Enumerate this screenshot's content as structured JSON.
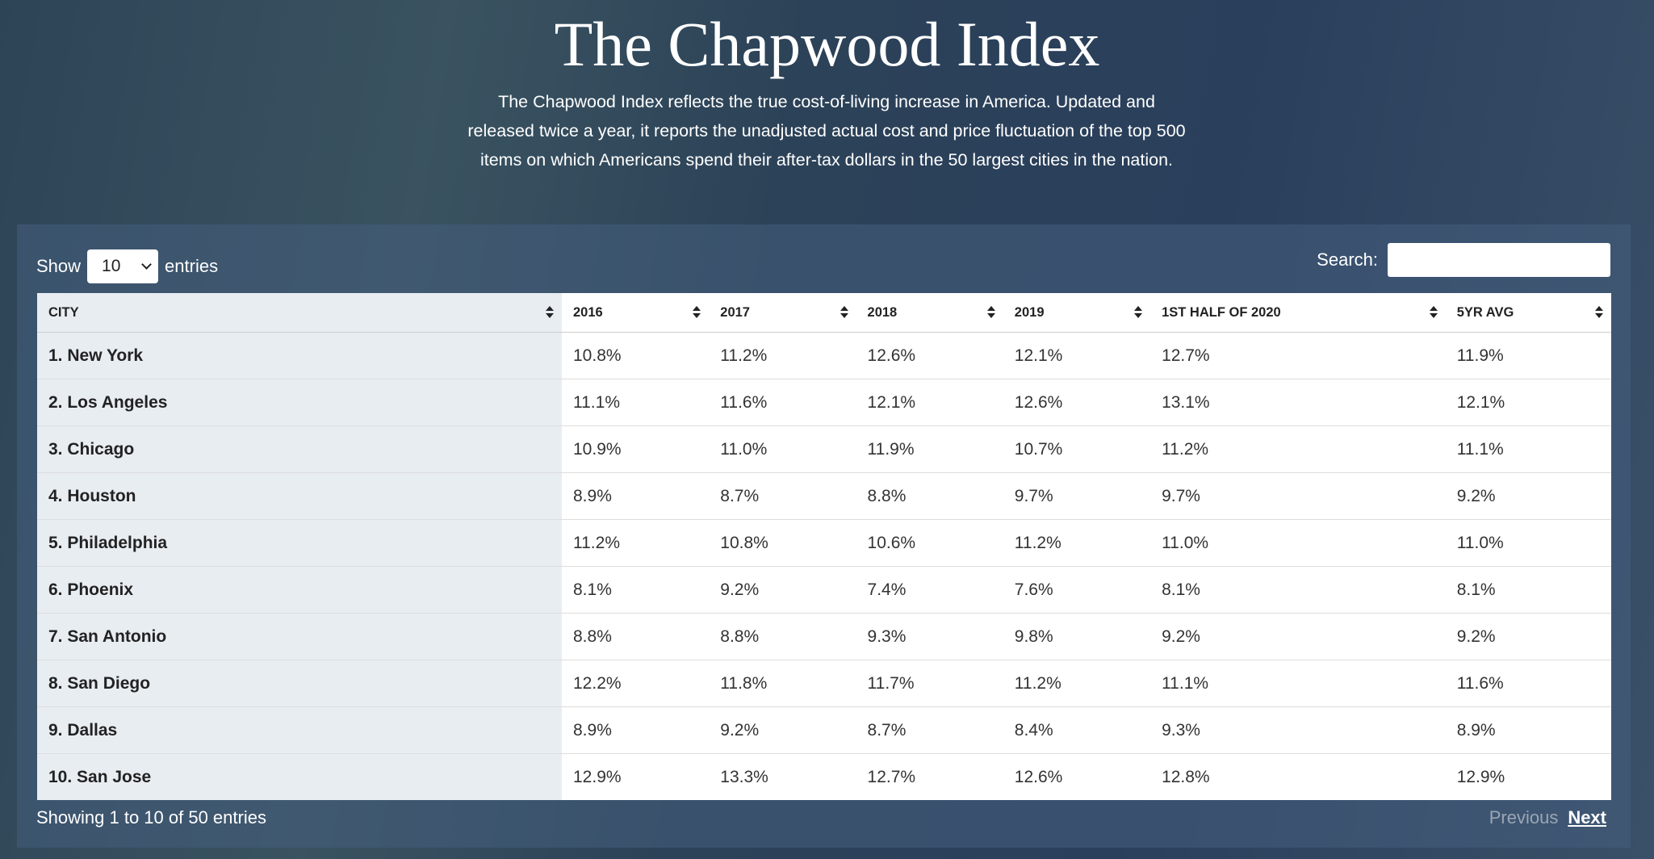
{
  "header": {
    "title": "The Chapwood Index",
    "description": "The Chapwood Index reflects the true cost-of-living increase in America. Updated and released twice a year, it reports the unadjusted actual cost and price fluctuation of the top 500 items on which Americans spend their after-tax dollars in the 50 largest cities in the nation."
  },
  "controls": {
    "show_label": "Show",
    "page_length": "10",
    "entries_label": "entries",
    "search_label": "Search:",
    "info": "Showing 1 to 10 of 50 entries",
    "previous": "Previous",
    "next": "Next"
  },
  "table": {
    "columns": [
      "CITY",
      "2016",
      "2017",
      "2018",
      "2019",
      "1ST HALF OF 2020",
      "5YR AVG"
    ],
    "rows": [
      [
        "1. New York",
        "10.8%",
        "11.2%",
        "12.6%",
        "12.1%",
        "12.7%",
        "11.9%"
      ],
      [
        "2. Los Angeles",
        "11.1%",
        "11.6%",
        "12.1%",
        "12.6%",
        "13.1%",
        "12.1%"
      ],
      [
        "3. Chicago",
        "10.9%",
        "11.0%",
        "11.9%",
        "10.7%",
        "11.2%",
        "11.1%"
      ],
      [
        "4. Houston",
        "8.9%",
        "8.7%",
        "8.8%",
        "9.7%",
        "9.7%",
        "9.2%"
      ],
      [
        "5. Philadelphia",
        "11.2%",
        "10.8%",
        "10.6%",
        "11.2%",
        "11.0%",
        "11.0%"
      ],
      [
        "6. Phoenix",
        "8.1%",
        "9.2%",
        "7.4%",
        "7.6%",
        "8.1%",
        "8.1%"
      ],
      [
        "7. San Antonio",
        "8.8%",
        "8.8%",
        "9.3%",
        "9.8%",
        "9.2%",
        "9.2%"
      ],
      [
        "8. San Diego",
        "12.2%",
        "11.8%",
        "11.7%",
        "11.2%",
        "11.1%",
        "11.6%"
      ],
      [
        "9. Dallas",
        "8.9%",
        "9.2%",
        "8.7%",
        "8.4%",
        "9.3%",
        "8.9%"
      ],
      [
        "10. San Jose",
        "12.9%",
        "13.3%",
        "12.7%",
        "12.6%",
        "12.8%",
        "12.9%"
      ]
    ]
  }
}
